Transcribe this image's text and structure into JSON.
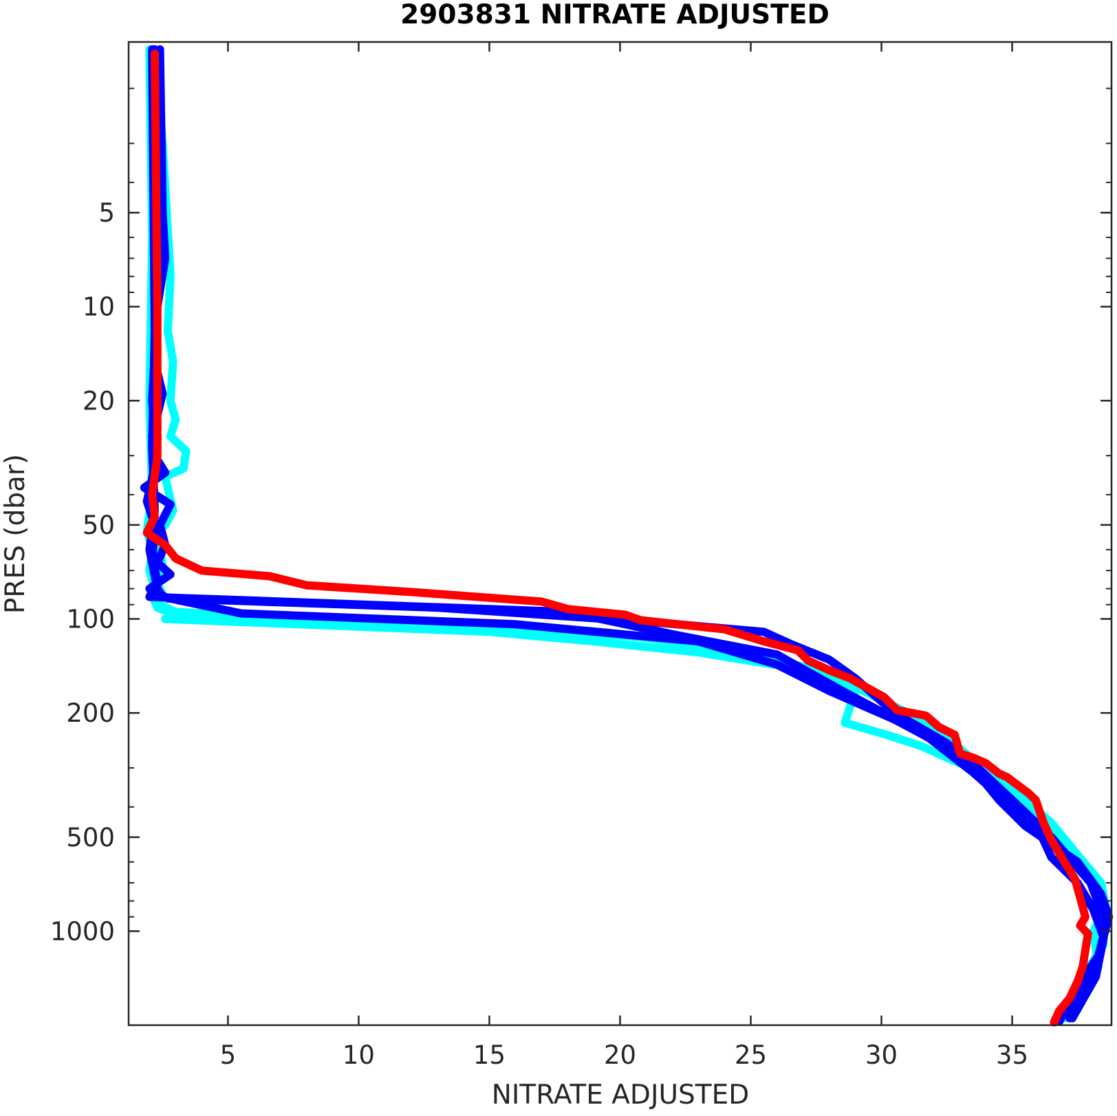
{
  "chart_data": {
    "type": "line",
    "title": "2903831  NITRATE ADJUSTED",
    "xlabel": "NITRATE ADJUSTED",
    "ylabel": "PRES (dbar)",
    "xlim": [
      1.2,
      38.8
    ],
    "ylim": [
      1.42,
      2000
    ],
    "y_scale": "log",
    "y_reversed": true,
    "grid": false,
    "x_ticks": [
      5,
      10,
      15,
      20,
      25,
      30,
      35
    ],
    "y_ticks": [
      5,
      10,
      20,
      50,
      100,
      200,
      500,
      1000
    ],
    "colors": {
      "cyan": "#00ffff",
      "blue": "#0000ff",
      "red": "#ff0000",
      "axis": "#262626"
    },
    "series": [
      {
        "color": "#00ffff",
        "points": [
          [
            2.2,
            1.5
          ],
          [
            2.5,
            3
          ],
          [
            2.8,
            8
          ],
          [
            2.7,
            12
          ],
          [
            2.9,
            15
          ],
          [
            2.8,
            20
          ],
          [
            3.0,
            23
          ],
          [
            2.8,
            26
          ],
          [
            3.4,
            29
          ],
          [
            3.3,
            33
          ],
          [
            2.6,
            35
          ],
          [
            2.9,
            45
          ],
          [
            2.6,
            50
          ],
          [
            2.2,
            53
          ],
          [
            2.4,
            60
          ],
          [
            2.5,
            68
          ],
          [
            2.2,
            75
          ],
          [
            2.5,
            83
          ],
          [
            2.2,
            88
          ],
          [
            2.3,
            92
          ],
          [
            3.0,
            97
          ],
          [
            2.6,
            100
          ],
          [
            15,
            110
          ],
          [
            19,
            118
          ],
          [
            23,
            128
          ],
          [
            27,
            145
          ],
          [
            29,
            170
          ],
          [
            28.6,
            215
          ],
          [
            30.2,
            235
          ],
          [
            31.5,
            255
          ],
          [
            33,
            290
          ],
          [
            34.5,
            320
          ],
          [
            35.5,
            380
          ],
          [
            36.5,
            450
          ],
          [
            37.5,
            570
          ],
          [
            38.4,
            700
          ],
          [
            38.6,
            850
          ],
          [
            38.1,
            1000
          ],
          [
            38.3,
            1300
          ],
          [
            37.8,
            1600
          ],
          [
            37,
            1900
          ]
        ]
      },
      {
        "color": "#00ffff",
        "points": [
          [
            2.0,
            1.5
          ],
          [
            2.1,
            6
          ],
          [
            2.0,
            20
          ],
          [
            2.1,
            40
          ],
          [
            1.9,
            52
          ],
          [
            2.1,
            60
          ],
          [
            2.0,
            70
          ],
          [
            2.2,
            80
          ],
          [
            2.4,
            90
          ],
          [
            3.0,
            95
          ],
          [
            8,
            100
          ],
          [
            16,
            106
          ],
          [
            21,
            115
          ],
          [
            25,
            128
          ],
          [
            28,
            150
          ],
          [
            31,
            200
          ],
          [
            33,
            260
          ],
          [
            35,
            360
          ],
          [
            37,
            520
          ],
          [
            38.3,
            760
          ],
          [
            38.5,
            1100
          ],
          [
            37.5,
            1500
          ],
          [
            36.8,
            1950
          ]
        ]
      },
      {
        "color": "#0000ff",
        "points": [
          [
            2.4,
            1.5
          ],
          [
            2.5,
            5
          ],
          [
            2.6,
            7
          ],
          [
            2.3,
            10
          ],
          [
            2.2,
            15
          ],
          [
            2.5,
            19
          ],
          [
            2.1,
            26
          ],
          [
            2.2,
            30
          ],
          [
            2.6,
            34
          ],
          [
            1.8,
            38
          ],
          [
            2.8,
            43
          ],
          [
            2.4,
            50
          ],
          [
            2.6,
            58
          ],
          [
            2.3,
            66
          ],
          [
            2.8,
            72
          ],
          [
            2.0,
            80
          ],
          [
            2.7,
            86
          ],
          [
            13,
            92
          ],
          [
            21,
            102
          ],
          [
            25.5,
            110
          ],
          [
            26.5,
            120
          ],
          [
            28,
            135
          ],
          [
            29,
            155
          ],
          [
            30.5,
            200
          ],
          [
            32.5,
            250
          ],
          [
            33.5,
            300
          ],
          [
            34.5,
            380
          ],
          [
            35.5,
            460
          ],
          [
            37.5,
            600
          ],
          [
            38.4,
            760
          ],
          [
            38.7,
            900
          ],
          [
            38.3,
            1200
          ],
          [
            37.5,
            1500
          ],
          [
            36.8,
            1950
          ]
        ]
      },
      {
        "color": "#0000ff",
        "points": [
          [
            2.2,
            1.5
          ],
          [
            2.3,
            10
          ],
          [
            2.1,
            20
          ],
          [
            2.3,
            30
          ],
          [
            1.9,
            42
          ],
          [
            2.2,
            50
          ],
          [
            2.1,
            65
          ],
          [
            2.3,
            75
          ],
          [
            2.0,
            85
          ],
          [
            18,
            95
          ],
          [
            22,
            112
          ],
          [
            26,
            130
          ],
          [
            28.5,
            170
          ],
          [
            31,
            220
          ],
          [
            33.5,
            290
          ],
          [
            35,
            380
          ],
          [
            36.5,
            500
          ],
          [
            38,
            700
          ],
          [
            38.6,
            950
          ],
          [
            38.2,
            1300
          ],
          [
            37.2,
            1900
          ]
        ]
      },
      {
        "color": "#0000ff",
        "points": [
          [
            2.1,
            1.5
          ],
          [
            2.2,
            12
          ],
          [
            2.1,
            28
          ],
          [
            2.2,
            45
          ],
          [
            2.0,
            60
          ],
          [
            2.3,
            80
          ],
          [
            2.5,
            85
          ],
          [
            5.5,
            96
          ],
          [
            16,
            104
          ],
          [
            23,
            118
          ],
          [
            26,
            140
          ],
          [
            28,
            170
          ],
          [
            30.5,
            210
          ],
          [
            31.8,
            240
          ],
          [
            33.5,
            310
          ],
          [
            35,
            400
          ],
          [
            36,
            470
          ],
          [
            36.5,
            580
          ],
          [
            37.5,
            700
          ],
          [
            38.1,
            850
          ],
          [
            38.5,
            1050
          ],
          [
            38.2,
            1400
          ],
          [
            37.3,
            1900
          ]
        ]
      },
      {
        "color": "#ff0000",
        "points": [
          [
            2.2,
            1.55
          ],
          [
            2.3,
            10
          ],
          [
            2.3,
            30
          ],
          [
            2.1,
            40
          ],
          [
            2.2,
            47
          ],
          [
            1.9,
            53
          ],
          [
            2.6,
            58
          ],
          [
            3.0,
            64
          ],
          [
            4.0,
            70
          ],
          [
            6.6,
            73
          ],
          [
            8.0,
            78
          ],
          [
            12,
            82
          ],
          [
            17,
            88
          ],
          [
            18,
            93
          ],
          [
            20.2,
            97
          ],
          [
            20.8,
            101
          ],
          [
            24,
            108
          ],
          [
            25.5,
            118
          ],
          [
            26.8,
            126
          ],
          [
            27.2,
            136
          ],
          [
            28,
            146
          ],
          [
            28.8,
            155
          ],
          [
            29.5,
            167
          ],
          [
            30.1,
            178
          ],
          [
            30.6,
            196
          ],
          [
            31.7,
            204
          ],
          [
            32.2,
            222
          ],
          [
            32.8,
            235
          ],
          [
            33.0,
            270
          ],
          [
            33.5,
            278
          ],
          [
            34.0,
            290
          ],
          [
            34.5,
            313
          ],
          [
            34.8,
            321
          ],
          [
            35.3,
            345
          ],
          [
            35.6,
            360
          ],
          [
            35.9,
            380
          ],
          [
            36.2,
            450
          ],
          [
            36.5,
            510
          ],
          [
            37.0,
            600
          ],
          [
            37.4,
            680
          ],
          [
            37.6,
            780
          ],
          [
            37.8,
            900
          ],
          [
            37.6,
            960
          ],
          [
            37.9,
            1020
          ],
          [
            37.8,
            1150
          ],
          [
            37.7,
            1300
          ],
          [
            37.5,
            1450
          ],
          [
            37.2,
            1640
          ],
          [
            36.8,
            1800
          ],
          [
            36.6,
            1960
          ]
        ]
      }
    ]
  }
}
